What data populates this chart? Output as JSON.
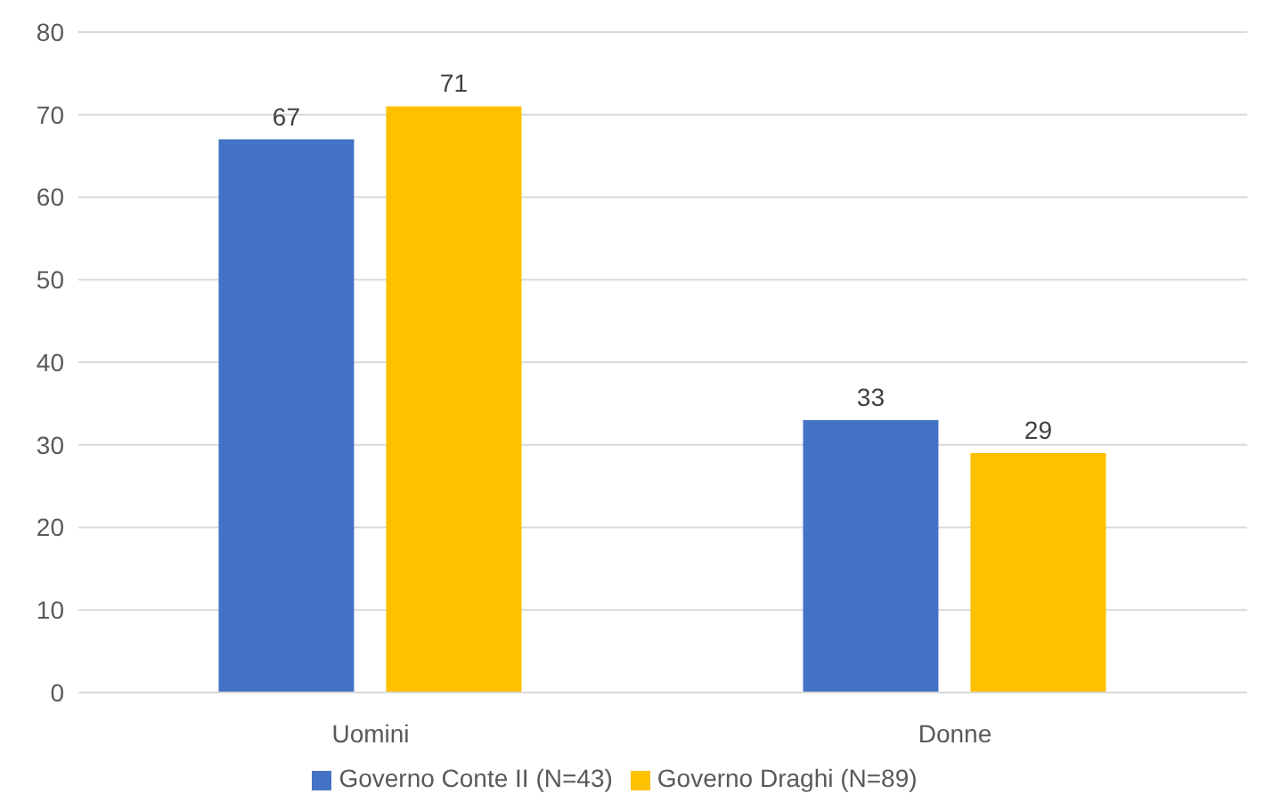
{
  "chart_data": {
    "type": "bar",
    "categories": [
      "Uomini",
      "Donne"
    ],
    "series": [
      {
        "name": "Governo Conte II (N=43)",
        "color": "#4472c4",
        "values": [
          67,
          33
        ]
      },
      {
        "name": "Governo Draghi (N=89)",
        "color": "#ffc000",
        "values": [
          71,
          29
        ]
      }
    ],
    "ylim": [
      0,
      80
    ],
    "yticks": [
      0,
      10,
      20,
      30,
      40,
      50,
      60,
      70,
      80
    ],
    "grid": "y",
    "legend": "bottom",
    "data_labels": true
  }
}
